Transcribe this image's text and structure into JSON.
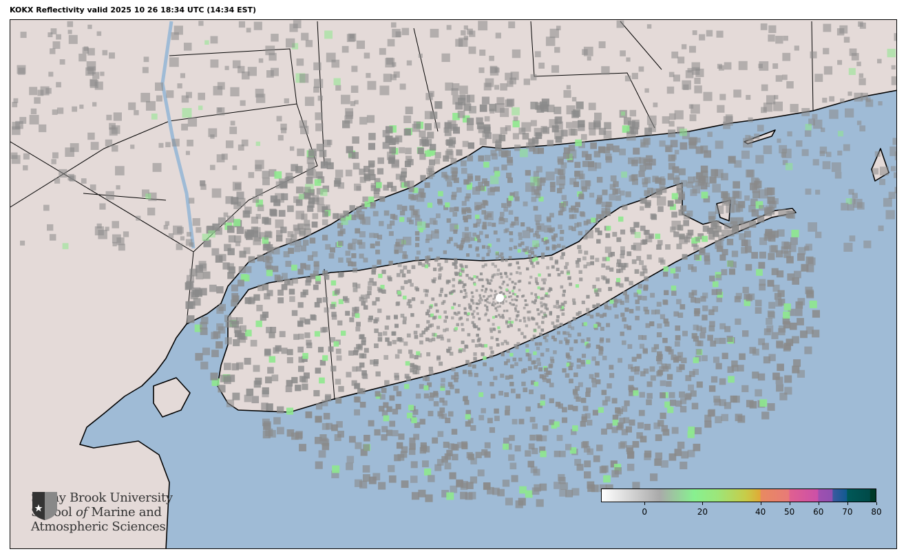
{
  "title": "KOKX Reflectivity valid 2025 10 26 18:34 UTC (14:34 EST)",
  "colors": {
    "water": "#9fbbd6",
    "land": "#e4dad8",
    "radar_gray": "#8a8a8a",
    "radar_green": "#8ee88e"
  },
  "logo": {
    "line1": "Stony Brook University",
    "line2_a": "School ",
    "line2_b": "of",
    "line2_c": " Marine and",
    "line3": "Atmospheric Sciences",
    "icon": "shield-star-icon"
  },
  "colorbar": {
    "range": [
      -15,
      80
    ],
    "ticks": [
      "0",
      "20",
      "40",
      "50",
      "60",
      "70",
      "80"
    ],
    "tick_values": [
      0,
      20,
      40,
      50,
      60,
      70,
      80
    ],
    "stops": [
      {
        "v": -15,
        "c": "#ffffff"
      },
      {
        "v": 5,
        "c": "#aaaaaa"
      },
      {
        "v": 17,
        "c": "#88f090"
      },
      {
        "v": 25,
        "c": "#9ce67a"
      },
      {
        "v": 35,
        "c": "#c8cc48"
      },
      {
        "v": 40,
        "c": "#e0aa36"
      },
      {
        "v": 40.1,
        "c": "#e88a60"
      },
      {
        "v": 50,
        "c": "#e87a78"
      },
      {
        "v": 50.1,
        "c": "#e06090"
      },
      {
        "v": 60,
        "c": "#cc50a8"
      },
      {
        "v": 60.1,
        "c": "#a050b0"
      },
      {
        "v": 65,
        "c": "#9050b0"
      },
      {
        "v": 65.1,
        "c": "#3a5aa0"
      },
      {
        "v": 70,
        "c": "#105a90"
      },
      {
        "v": 70.1,
        "c": "#005858"
      },
      {
        "v": 78,
        "c": "#004a48"
      },
      {
        "v": 78.1,
        "c": "#003a28"
      },
      {
        "v": 80,
        "c": "#003a28"
      }
    ]
  }
}
